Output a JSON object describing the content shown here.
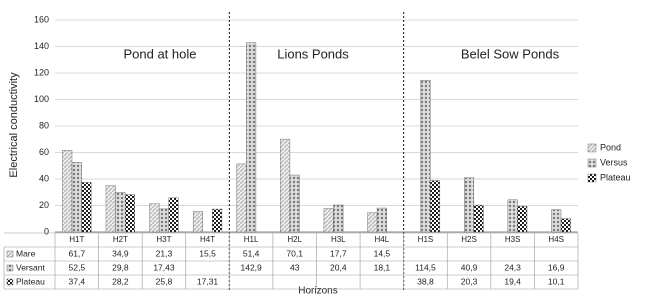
{
  "chart_data": {
    "type": "bar",
    "y_label": "Electrical conductivity",
    "x_label": "Horizons",
    "group_labels": [
      "Pond at hole",
      "Lions Ponds",
      "Belel Sow Ponds"
    ],
    "categories": [
      "H1T",
      "H2T",
      "H3T",
      "H4T",
      "H1L",
      "H2L",
      "H3L",
      "H4L",
      "H1S",
      "H2S",
      "H3S",
      "H4S"
    ],
    "table_labels": [
      "Mare",
      "Versant",
      "Plateau"
    ],
    "series": [
      {
        "name": "Pond",
        "color": "#b5b5b5",
        "values": [
          61.7,
          34.9,
          21.3,
          15.5,
          51.4,
          70.1,
          17.7,
          14.5,
          null,
          null,
          null,
          null
        ],
        "value_labels": [
          "61,7",
          "34,9",
          "21,3",
          "15,5",
          "51,4",
          "70,1",
          "17,7",
          "14,5",
          null,
          null,
          null,
          null
        ]
      },
      {
        "name": "Versus",
        "color": "#7a7a7a",
        "values": [
          52.5,
          29.8,
          17.43,
          null,
          142.9,
          43,
          20.4,
          18.1,
          114.5,
          40.9,
          24.3,
          16.9
        ],
        "value_labels": [
          "52,5",
          "29,8",
          "17,43",
          null,
          "142,9",
          "43",
          "20,4",
          "18,1",
          "114,5",
          "40,9",
          "24,3",
          "16,9"
        ]
      },
      {
        "name": "Plateau",
        "color": "#1e1e1e",
        "values": [
          37.4,
          28.2,
          25.8,
          17.31,
          null,
          null,
          null,
          null,
          38.8,
          20.3,
          19.4,
          10.1
        ],
        "value_labels": [
          "37,4",
          "28,2",
          "25,8",
          "17,31",
          null,
          null,
          null,
          null,
          "38,8",
          "20,3",
          "19,4",
          "10,1"
        ]
      }
    ],
    "ylim": [
      0,
      160
    ],
    "yticks": [
      0,
      20,
      40,
      60,
      80,
      100,
      120,
      140,
      160
    ],
    "grid": true
  }
}
